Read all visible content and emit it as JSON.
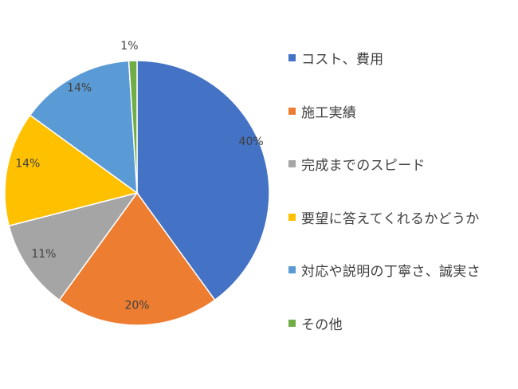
{
  "chart_data": {
    "type": "pie",
    "title": "",
    "categories": [
      "コスト、費用",
      "施工実績",
      "完成までのスピード",
      "要望に答えてくれるかどうか",
      "対応や説明の丁寧さ、誠実さ",
      "その他"
    ],
    "values": [
      40,
      20,
      11,
      14,
      14,
      1
    ],
    "data_labels": [
      "40%",
      "20%",
      "11%",
      "14%",
      "14%",
      "1%"
    ],
    "colors": [
      "#4472C4",
      "#ED7D31",
      "#A5A5A5",
      "#FFC000",
      "#5B9BD5",
      "#70AD47"
    ],
    "start": "top",
    "direction": "clockwise",
    "legend_position": "right"
  }
}
